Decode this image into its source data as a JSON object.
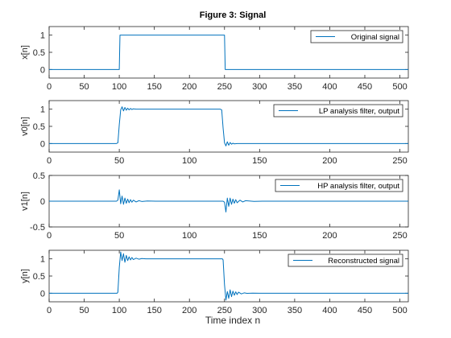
{
  "figure": {
    "title": "Figure 3: Signal",
    "xlabel": "Time index n"
  },
  "colors": {
    "line": "#0072BD",
    "axes": "#262626",
    "background": "#ffffff"
  },
  "chart_data": [
    {
      "type": "line",
      "ylabel": "x[n]",
      "legend": "Original signal",
      "legend_position": "top-right",
      "xlim": [
        0,
        512
      ],
      "ylim": [
        -0.25,
        1.25
      ],
      "xticks": [
        0,
        50,
        100,
        150,
        200,
        250,
        300,
        350,
        400,
        450,
        500
      ],
      "yticks": [
        0,
        0.5,
        1
      ],
      "ytick_labels": [
        "0",
        "0.5",
        "1"
      ],
      "series": [
        {
          "x": [
            0,
            100,
            101,
            250,
            251,
            512
          ],
          "y": [
            0,
            0,
            1,
            1,
            0,
            0
          ]
        }
      ]
    },
    {
      "type": "line",
      "ylabel": "v0[n]",
      "legend": "LP analysis filter, output",
      "legend_position": "top-right",
      "xlim": [
        0,
        256
      ],
      "ylim": [
        -0.25,
        1.25
      ],
      "xticks": [
        0,
        50,
        100,
        150,
        200,
        250
      ],
      "yticks": [
        0,
        0.5,
        1
      ],
      "ytick_labels": [
        "0",
        "0.5",
        "1"
      ],
      "series": [
        {
          "x": [
            0,
            48,
            49,
            50,
            51,
            52,
            53,
            54,
            55,
            56,
            57,
            58,
            59,
            60,
            62,
            64,
            122,
            123,
            124,
            125,
            126,
            127,
            128,
            129,
            130,
            131,
            132,
            134,
            136,
            256
          ],
          "y": [
            0,
            0,
            0.02,
            0.55,
            0.98,
            1.07,
            0.95,
            1.05,
            0.97,
            1.03,
            0.98,
            1.02,
            0.99,
            1.01,
            1,
            1,
            1,
            0.98,
            0.45,
            0.02,
            -0.07,
            0.05,
            -0.05,
            0.03,
            -0.02,
            0.01,
            -0.01,
            0,
            0,
            0
          ]
        }
      ]
    },
    {
      "type": "line",
      "ylabel": "v1[n]",
      "legend": "HP analysis filter, output",
      "legend_position": "top-right",
      "xlim": [
        0,
        256
      ],
      "ylim": [
        -0.5,
        0.5
      ],
      "xticks": [
        0,
        50,
        100,
        150,
        200,
        250
      ],
      "yticks": [
        -0.5,
        0,
        0.5
      ],
      "ytick_labels": [
        "-0.5",
        "0",
        "0.5"
      ],
      "series": [
        {
          "x": [
            0,
            48,
            49,
            50,
            51,
            52,
            53,
            54,
            55,
            56,
            57,
            58,
            59,
            60,
            62,
            64,
            66,
            70,
            76,
            124,
            125,
            126,
            127,
            128,
            129,
            130,
            131,
            132,
            133,
            134,
            136,
            138,
            140,
            146,
            152,
            256
          ],
          "y": [
            0,
            0,
            0.02,
            0.22,
            -0.05,
            0.1,
            -0.06,
            0.06,
            -0.04,
            0.04,
            -0.03,
            0.03,
            -0.02,
            0.02,
            -0.015,
            0.01,
            -0.005,
            0.003,
            0,
            0,
            -0.02,
            -0.21,
            0.06,
            -0.1,
            0.06,
            -0.06,
            0.04,
            -0.04,
            0.03,
            -0.03,
            0.02,
            -0.015,
            0.01,
            -0.003,
            0,
            0
          ]
        }
      ]
    },
    {
      "type": "line",
      "ylabel": "y[n]",
      "legend": "Reconstructed signal",
      "legend_position": "top-right",
      "xlim": [
        0,
        512
      ],
      "ylim": [
        -0.25,
        1.25
      ],
      "xticks": [
        0,
        50,
        100,
        150,
        200,
        250,
        300,
        350,
        400,
        450,
        500
      ],
      "yticks": [
        0,
        0.5,
        1
      ],
      "ytick_labels": [
        "0",
        "0.5",
        "1"
      ],
      "series": [
        {
          "x": [
            0,
            97,
            98,
            100,
            102,
            104,
            106,
            108,
            110,
            112,
            114,
            116,
            118,
            120,
            124,
            128,
            132,
            138,
            150,
            247,
            248,
            250,
            252,
            254,
            256,
            258,
            260,
            262,
            264,
            266,
            268,
            270,
            274,
            278,
            282,
            290,
            300,
            512
          ],
          "y": [
            0,
            0,
            0.03,
            0.75,
            1.2,
            0.95,
            1.15,
            0.9,
            1.1,
            0.95,
            1.06,
            0.97,
            1.04,
            0.98,
            1.02,
            0.99,
            1.01,
            1,
            1,
            1,
            0.97,
            0.25,
            -0.2,
            0.05,
            -0.15,
            0.1,
            -0.1,
            0.06,
            -0.06,
            0.04,
            -0.04,
            0.03,
            -0.02,
            0.01,
            -0.005,
            0.002,
            0,
            0
          ]
        }
      ]
    }
  ]
}
